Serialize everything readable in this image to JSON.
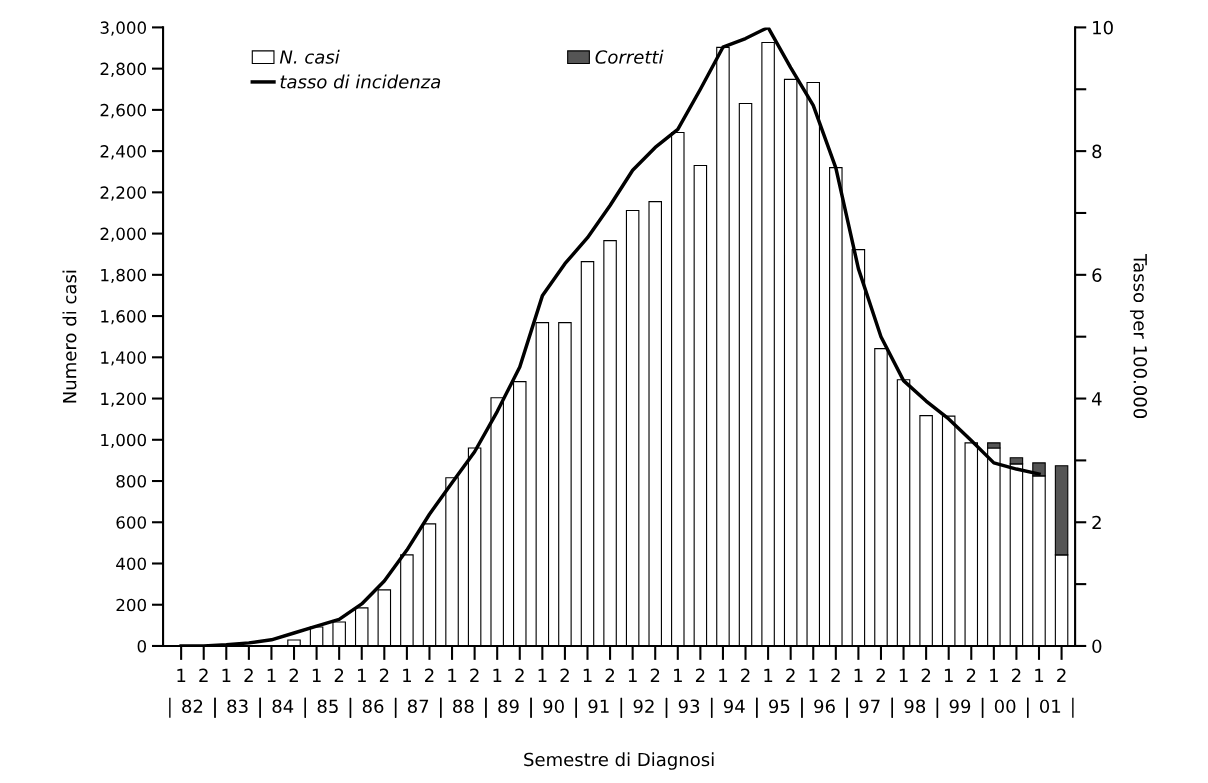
{
  "chart_data": {
    "type": "bar",
    "stacked": true,
    "xlabel": "Semestre di Diagnosi",
    "ylabel": "Numero di casi",
    "y2label": "Tasso per 100.000",
    "categories": [
      "1",
      "2",
      "1",
      "2",
      "1",
      "2",
      "1",
      "2",
      "1",
      "2",
      "1",
      "2",
      "1",
      "2",
      "1",
      "2",
      "1",
      "2",
      "1",
      "2",
      "1",
      "2",
      "1",
      "2",
      "1",
      "2",
      "1",
      "2",
      "1",
      "2",
      "1",
      "2",
      "1",
      "2",
      "1",
      "2",
      "1",
      "2",
      "1",
      "2"
    ],
    "annotations": [
      "82",
      "83",
      "84",
      "85",
      "86",
      "87",
      "88",
      "89",
      "90",
      "91",
      "92",
      "93",
      "94",
      "95",
      "96",
      "97",
      "98",
      "99",
      "00",
      "01"
    ],
    "series": [
      {
        "name": "N. casi",
        "color": "#ffffff",
        "values": [
          0,
          0,
          2,
          3,
          5,
          29,
          92,
          116,
          185,
          272,
          442,
          592,
          816,
          960,
          1204,
          1282,
          1568,
          1568,
          1864,
          1966,
          2112,
          2155,
          2490,
          2330,
          2903,
          2631,
          2927,
          2748,
          2733,
          2320,
          1922,
          1442,
          1291,
          1117,
          1115,
          985,
          960,
          883,
          825,
          442
        ]
      },
      {
        "name": "Corretti",
        "color": "#555555",
        "values": [
          null,
          null,
          null,
          null,
          null,
          null,
          null,
          null,
          null,
          null,
          null,
          null,
          null,
          null,
          null,
          null,
          null,
          null,
          null,
          null,
          null,
          null,
          null,
          null,
          null,
          null,
          null,
          null,
          null,
          null,
          null,
          null,
          null,
          null,
          null,
          null,
          25,
          30,
          63,
          432
        ]
      },
      {
        "name": "tasso di incidenza",
        "type": "line",
        "axis": "y2",
        "color": "#000000",
        "values": [
          0,
          0,
          0.02,
          0.05,
          0.1,
          0.21,
          0.32,
          0.43,
          0.68,
          1.05,
          1.55,
          2.13,
          2.64,
          3.14,
          3.79,
          4.51,
          5.66,
          6.18,
          6.6,
          7.12,
          7.69,
          8.06,
          8.35,
          9.0,
          9.68,
          9.82,
          10.0,
          9.35,
          8.74,
          7.73,
          6.1,
          5.0,
          4.29,
          3.96,
          3.67,
          3.32,
          2.96,
          2.86,
          2.78,
          null
        ]
      }
    ],
    "ylim": [
      0,
      3000
    ],
    "yticks": [
      0,
      200,
      400,
      600,
      800,
      {
        "value": 1000,
        "label": "1,000"
      },
      {
        "value": 1200,
        "label": "1,200"
      },
      {
        "value": 1400,
        "label": "1,400"
      },
      {
        "value": 1600,
        "label": "1,600"
      },
      {
        "value": 1800,
        "label": "1,800"
      },
      {
        "value": 2000,
        "label": "2,000"
      },
      {
        "value": 2200,
        "label": "2,200"
      },
      {
        "value": 2400,
        "label": "2,400"
      },
      {
        "value": 2600,
        "label": "2,600"
      },
      {
        "value": 2800,
        "label": "2,800"
      },
      {
        "value": 3000,
        "label": "3,000"
      }
    ],
    "y2lim": [
      0,
      10
    ],
    "y2ticks": [
      0,
      {
        "value": 1,
        "label": null
      },
      2,
      {
        "value": 3,
        "label": null
      },
      4,
      {
        "value": 5,
        "label": null
      },
      6,
      {
        "value": 7,
        "label": null
      },
      8,
      {
        "value": 9,
        "label": null
      },
      10
    ],
    "legend": "top left",
    "grid": false
  }
}
